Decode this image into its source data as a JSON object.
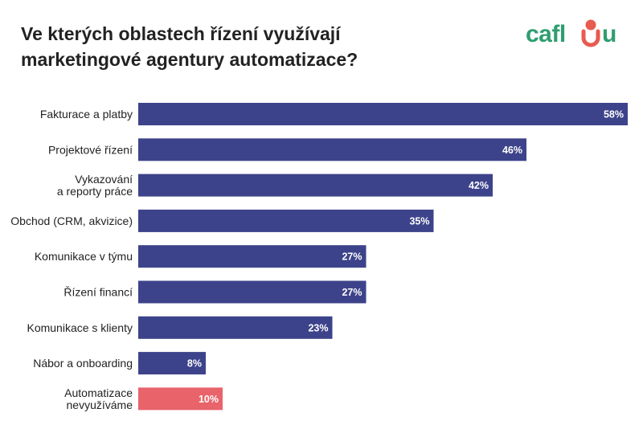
{
  "header": {
    "title_line1": "Ve kterých oblastech řízení využívají",
    "title_line2": "marketingové agentury automatizace?"
  },
  "logo": {
    "text": "caflou",
    "colors": {
      "main": "#2e9e70",
      "accent_red": "#e85b50",
      "accent_teal": "#2e9e70"
    }
  },
  "colors": {
    "bar": "#3d438a",
    "bar_highlight": "#e8636a",
    "value_text": "#ffffff"
  },
  "chart_data": {
    "type": "bar",
    "orientation": "horizontal",
    "title": "Ve kterých oblastech řízení využívají marketingové agentury automatizace?",
    "xlabel": "",
    "ylabel": "",
    "xlim": [
      0,
      58
    ],
    "unit": "%",
    "categories": [
      [
        "Fakturace a platby"
      ],
      [
        "Projektové řízení"
      ],
      [
        "Vykazování",
        "a reporty práce"
      ],
      [
        "Obchod (CRM, akvizice)"
      ],
      [
        "Komunikace v týmu"
      ],
      [
        "Řízení financí"
      ],
      [
        "Komunikace s klienty"
      ],
      [
        "Nábor a onboarding"
      ],
      [
        "Automatizace",
        "nevyužíváme"
      ]
    ],
    "values": [
      58,
      46,
      42,
      35,
      27,
      27,
      23,
      8,
      10
    ],
    "highlight": [
      false,
      false,
      false,
      false,
      false,
      false,
      false,
      false,
      true
    ]
  }
}
